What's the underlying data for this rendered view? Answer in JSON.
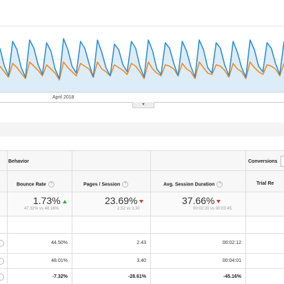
{
  "chart": {
    "x_label": "April 2018",
    "colors": {
      "primary": "#2c8fd6",
      "secondary": "#f08a24",
      "fill": "#dcecf8"
    },
    "series_blue": [
      70,
      95,
      110,
      60,
      72,
      98,
      112,
      58,
      70,
      94,
      108,
      62,
      74,
      100,
      114,
      56,
      72,
      96,
      106,
      60,
      70,
      92,
      112,
      58,
      76,
      98,
      110,
      64,
      72,
      94,
      104,
      60,
      70,
      96,
      112,
      58,
      74,
      100,
      108,
      62,
      70,
      92,
      110,
      60,
      74,
      96,
      112,
      58,
      72,
      98,
      106,
      62,
      70,
      94,
      110,
      60,
      76,
      98,
      112,
      58,
      72,
      96,
      104,
      62,
      70,
      92,
      108,
      60
    ],
    "series_orange": [
      96,
      104,
      112,
      92,
      98,
      106,
      114,
      90,
      96,
      102,
      110,
      94,
      100,
      106,
      116,
      90,
      98,
      104,
      110,
      92,
      96,
      100,
      112,
      90,
      100,
      104,
      110,
      94,
      98,
      102,
      108,
      92,
      96,
      104,
      114,
      90,
      100,
      106,
      110,
      94,
      96,
      100,
      110,
      92,
      100,
      104,
      114,
      90,
      98,
      106,
      108,
      94,
      96,
      102,
      112,
      92,
      100,
      104,
      114,
      90,
      98,
      104,
      108,
      94,
      96,
      100,
      110,
      92
    ]
  },
  "table": {
    "groups": {
      "behavior": "Behavior",
      "conversions": "Conversions"
    },
    "headers": {
      "bounce_rate": "Bounce Rate",
      "pages_session": "Pages / Session",
      "avg_duration": "Avg. Session Duration",
      "trial": "Trial Re"
    },
    "help_glyph": "?",
    "summary": {
      "bounce_rate": {
        "value": "1.73%",
        "compare": "47.32% vs 48.16%",
        "direction": "up"
      },
      "pages_session": {
        "value": "23.69%",
        "compare": "2.52 vs 3.30",
        "direction": "down"
      },
      "avg_duration": {
        "value": "37.66%",
        "compare": "00:02:20 vs 00:03:45",
        "direction": "down"
      }
    },
    "rows": [
      {
        "bounce_rate": "44.50%",
        "pages_session": "2.43",
        "avg_duration": "00:02:12"
      },
      {
        "bounce_rate": "48.01%",
        "pages_session": "3.40",
        "avg_duration": "00:04:01"
      },
      {
        "bounce_rate": "-7.32%",
        "pages_session": "-28.61%",
        "avg_duration": "-45.16%"
      }
    ]
  }
}
